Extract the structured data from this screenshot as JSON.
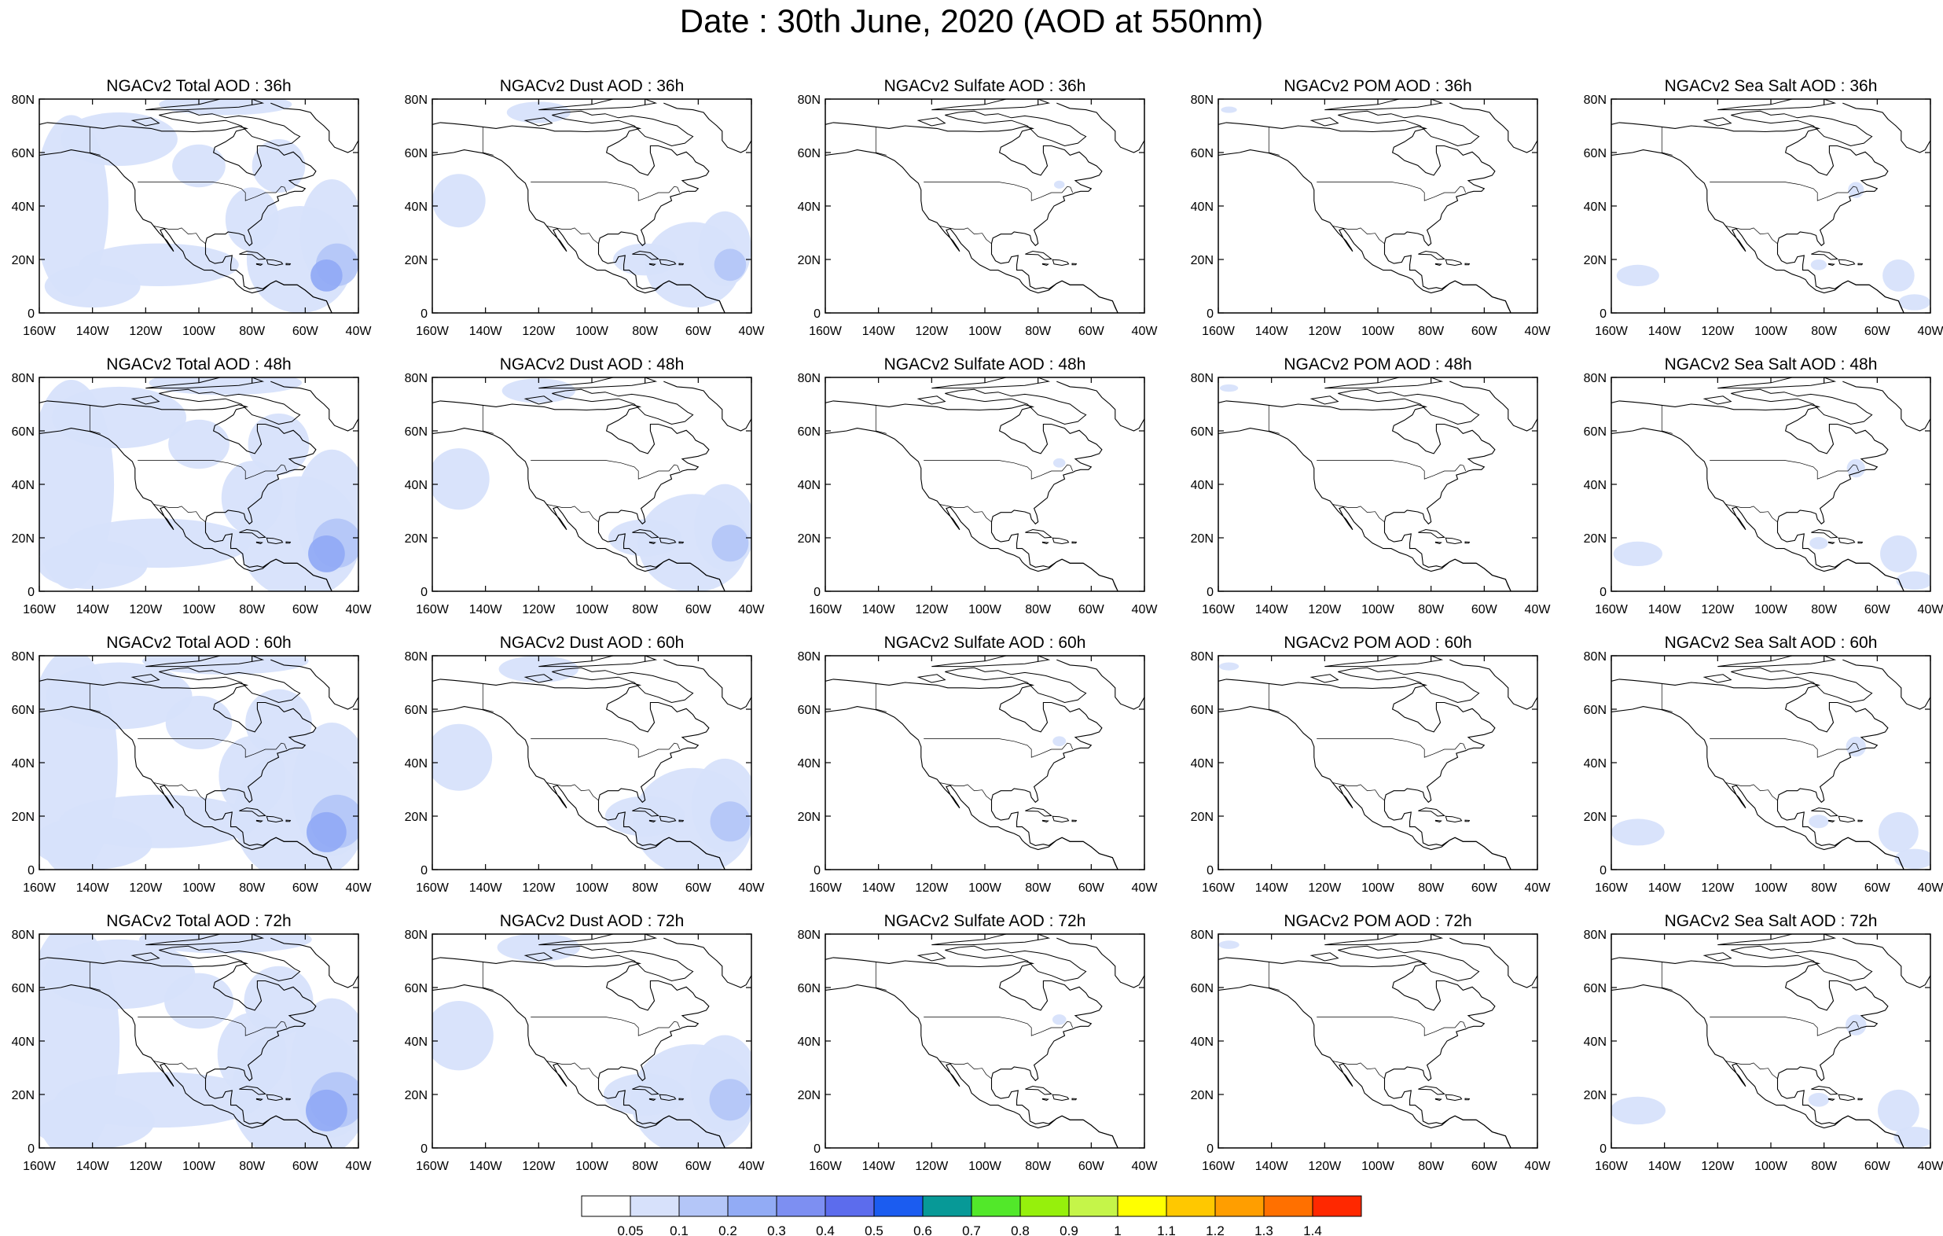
{
  "title": "Date : 30th June, 2020 (AOD at 550nm)",
  "rows": [
    [
      "NGACv2 Total AOD : 36h",
      "NGACv2 Dust AOD : 36h",
      "NGACv2 Sulfate AOD : 36h",
      "NGACv2 POM AOD : 36h",
      "NGACv2 Sea Salt AOD : 36h"
    ],
    [
      "NGACv2 Total AOD : 48h",
      "NGACv2 Dust AOD : 48h",
      "NGACv2 Sulfate AOD : 48h",
      "NGACv2 POM AOD : 48h",
      "NGACv2 Sea Salt AOD : 48h"
    ],
    [
      "NGACv2 Total AOD : 60h",
      "NGACv2 Dust AOD : 60h",
      "NGACv2 Sulfate AOD : 60h",
      "NGACv2 POM AOD : 60h",
      "NGACv2 Sea Salt AOD : 60h"
    ],
    [
      "NGACv2 Total AOD : 72h",
      "NGACv2 Dust AOD : 72h",
      "NGACv2 Sulfate AOD : 72h",
      "NGACv2 POM AOD : 72h",
      "NGACv2 Sea Salt  AOD : 72h"
    ]
  ],
  "lat_ticks": [
    "80N",
    "60N",
    "40N",
    "20N",
    "0"
  ],
  "lon_ticks": [
    "160W",
    "140W",
    "120W",
    "100W",
    "80W",
    "60W",
    "40W"
  ],
  "colorbar": {
    "colors": [
      "#ffffff",
      "#d7e1fb",
      "#b4c6f8",
      "#92abf5",
      "#7d8ff2",
      "#5c6ced",
      "#1b5cf0",
      "#079997",
      "#52e82a",
      "#96f00c",
      "#c5f549",
      "#ffff00",
      "#ffc800",
      "#ff9e00",
      "#ff7000",
      "#ff2800"
    ],
    "labels": [
      "0.05",
      "0.1",
      "0.2",
      "0.3",
      "0.4",
      "0.5",
      "0.6",
      "0.7",
      "0.8",
      "0.9",
      "1",
      "1.1",
      "1.2",
      "1.3",
      "1.4"
    ]
  }
}
